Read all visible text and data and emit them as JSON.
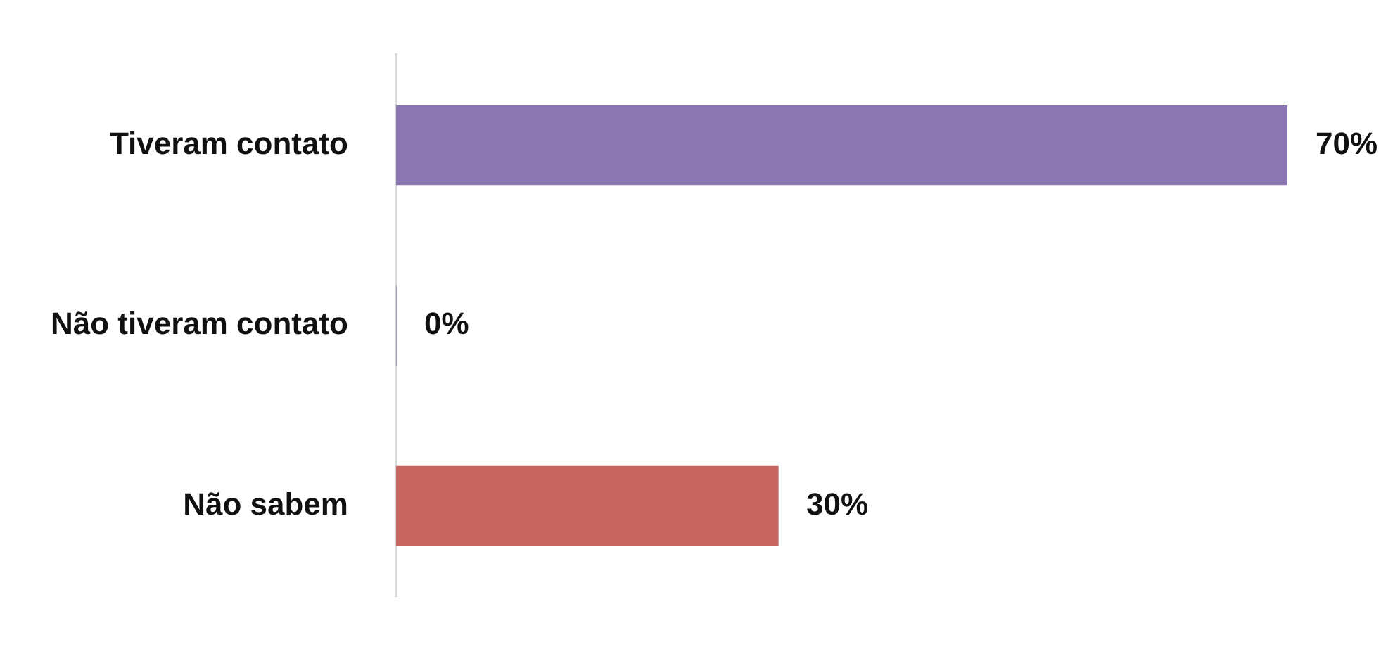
{
  "chart_data": {
    "type": "bar",
    "orientation": "horizontal",
    "categories": [
      "Tiveram contato",
      "Não tiveram contato",
      "Não sabem"
    ],
    "values": [
      70,
      0,
      30
    ],
    "colors": [
      "#8a76b0",
      "#8a76b0",
      "#c96560"
    ],
    "value_labels": [
      "70%",
      "0%",
      "30%"
    ],
    "grid": false,
    "legend": false
  }
}
